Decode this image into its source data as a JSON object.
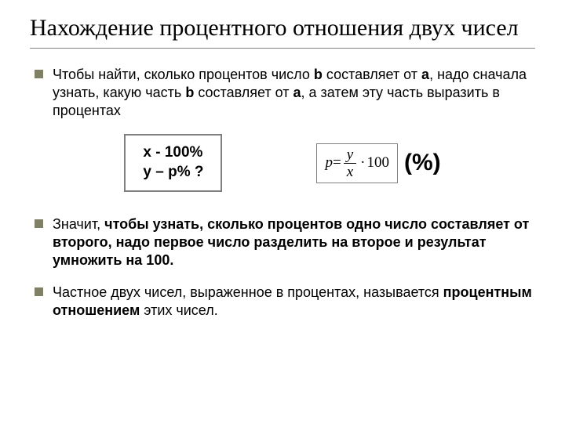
{
  "title": "Нахождение процентного отношения двух чисел",
  "bullets": [
    {
      "pre": "Чтобы найти, сколько процентов число ",
      "b1": "b",
      "mid1": " составляет от ",
      "b2": "a",
      "mid2": ", надо сначала узнать, какую часть ",
      "b3": "b",
      "mid3": " составляет от ",
      "b4": "a",
      "post": ", а затем эту часть выразить в процентах"
    },
    {
      "pre": "Значит, ",
      "bold": "чтобы узнать, сколько процентов одно число составляет от второго, надо первое число разделить на второе и результат умножить на 100."
    },
    {
      "pre": "Частное двух чисел, выраженное в процентах, называется ",
      "bold": "процентным отношением",
      "post": " этих чисел."
    }
  ],
  "formula_left": {
    "line1": "x -  100%",
    "line2": "y – p% ?"
  },
  "formula_right": {
    "lhs": "p",
    "eq": " = ",
    "num": "y",
    "den": "x",
    "dot": "·",
    "hundred": "100"
  },
  "percent_label": "(%)",
  "colors": {
    "marker": "#808066",
    "underline": "#808080",
    "box_border": "#808080"
  }
}
